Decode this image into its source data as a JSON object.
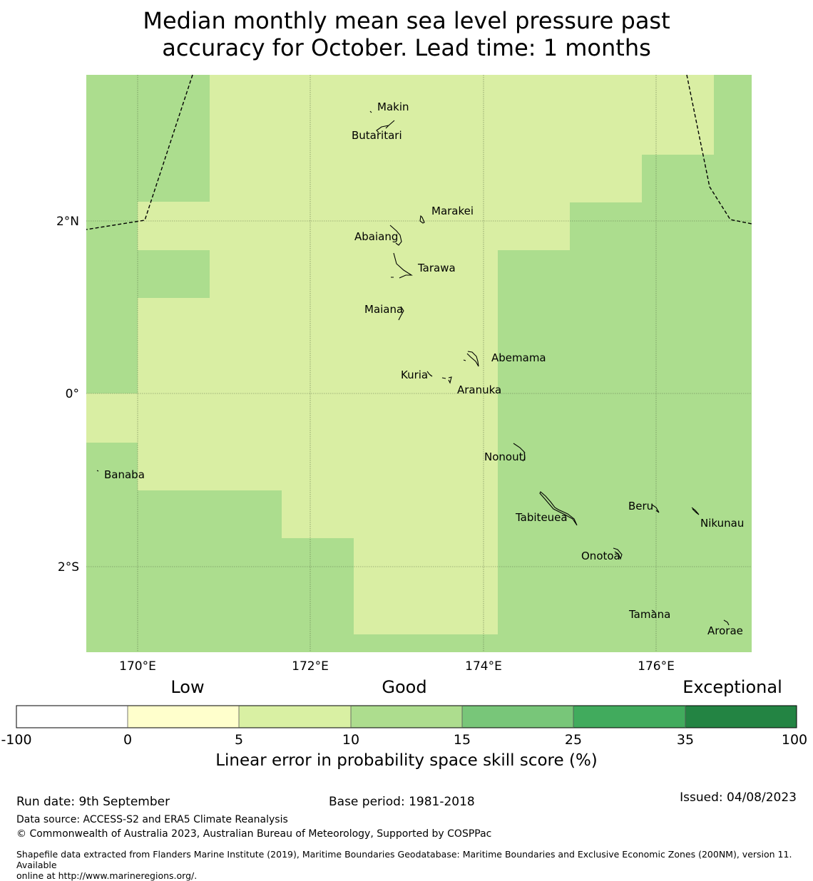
{
  "title_line1": "Median monthly mean sea level pressure past",
  "title_line2": "accuracy for October. Lead time: 1 months",
  "map": {
    "x_ticks": [
      "170°E",
      "172°E",
      "174°E",
      "176°E"
    ],
    "y_ticks": [
      "2°N",
      "0°",
      "2°S"
    ],
    "islands": [
      {
        "name": "Makin"
      },
      {
        "name": "Butaritari"
      },
      {
        "name": "Marakei"
      },
      {
        "name": "Abaiang"
      },
      {
        "name": "Tarawa"
      },
      {
        "name": "Maiana"
      },
      {
        "name": "Abemama"
      },
      {
        "name": "Kuria"
      },
      {
        "name": "Aranuka"
      },
      {
        "name": "Nonouti"
      },
      {
        "name": "Banaba"
      },
      {
        "name": "Beru"
      },
      {
        "name": "Tabiteuea"
      },
      {
        "name": "Nikunau"
      },
      {
        "name": "Onotoa"
      },
      {
        "name": "Tamana"
      },
      {
        "name": "Arorae"
      }
    ],
    "category_colors": {
      "5-10": "#d9eea3",
      "10-15": "#acdd8e"
    }
  },
  "colorbar": {
    "headers": [
      "Low",
      "Good",
      "Exceptional"
    ],
    "ticks": [
      "-100",
      "0",
      "5",
      "10",
      "15",
      "25",
      "35",
      "100"
    ],
    "colors": [
      "#ffffff",
      "#ffffcc",
      "#d9f0a3",
      "#addd8e",
      "#78c679",
      "#41ab5d",
      "#238443"
    ],
    "label": "Linear error in probability space skill score (%)"
  },
  "footer": {
    "run_date": "Run date: 9th September",
    "base_period": "Base period: 1981-2018",
    "issued": "Issued: 04/08/2023",
    "data_source": "Data source: ACCESS-S2 and ERA5 Climate Reanalysis",
    "copyright": "© Commonwealth of Australia 2023, Australian Bureau of Meteorology, Supported by COSPPac",
    "shapefile_1": "Shapefile data extracted from Flanders Marine Institute (2019), Maritime Boundaries Geodatabase: Maritime Boundaries and Exclusive Economic Zones (200NM), version 11. Available",
    "shapefile_2": "online at http://www.marineregions.org/."
  }
}
